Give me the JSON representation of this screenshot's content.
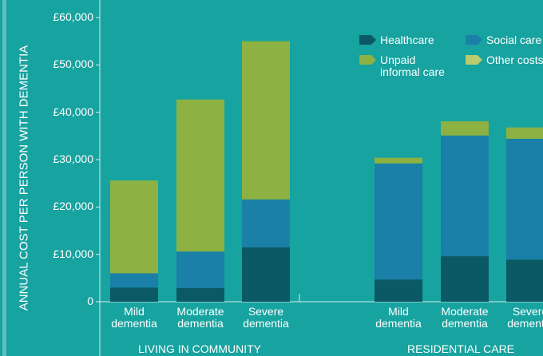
{
  "chart_data": {
    "type": "stacked_bar",
    "y_label": "ANNUAL COST PER PERSON WITH DEMENTIA",
    "categories": [
      "Mild dementia",
      "Moderate dementia",
      "Severe dementia",
      "Mild dementia",
      "Moderate dementia",
      "Severe dementia"
    ],
    "groups": [
      "LIVING IN COMMUNITY",
      "RESIDENTIAL CARE"
    ],
    "series": [
      {
        "name": "Healthcare",
        "color": "#0b5965",
        "values": [
          3000,
          2900,
          11500,
          4700,
          9600,
          8900
        ]
      },
      {
        "name": "Social care",
        "color": "#1a80a8",
        "values": [
          3000,
          7700,
          10100,
          24500,
          25500,
          25500
        ]
      },
      {
        "name": "Unpaid informal care",
        "color": "#8db142",
        "values": [
          19600,
          32100,
          33400,
          1200,
          3000,
          2400
        ]
      },
      {
        "name": "Other costs",
        "color": "#b8cc6e",
        "values": [
          0,
          0,
          0,
          0,
          0,
          0
        ]
      }
    ],
    "ylim": [
      0,
      60000
    ],
    "yticks": [
      0,
      {
        "value": 10000,
        "label": "£10,000"
      },
      {
        "value": 20000,
        "label": "£20,000"
      },
      {
        "value": 30000,
        "label": "£30,000"
      },
      {
        "value": 40000,
        "label": "£40,000"
      },
      {
        "value": 50000,
        "label": "£50,000"
      },
      {
        "value": 60000,
        "label": "£60,000"
      }
    ],
    "legend": "top-right"
  }
}
